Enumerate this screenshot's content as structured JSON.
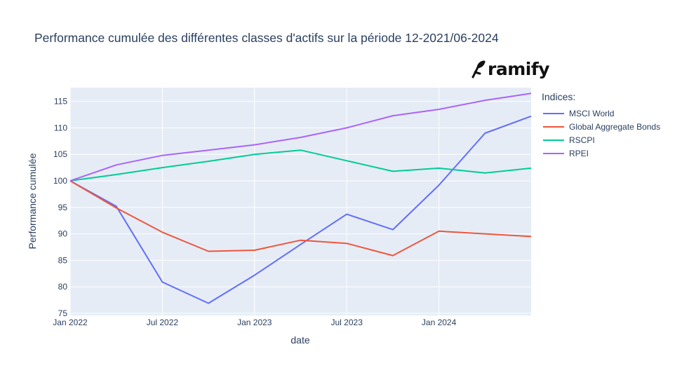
{
  "chart_data": {
    "type": "line",
    "title": "Performance cumulée des différentes classes d'actifs sur la période 12-2021/06-2024",
    "xlabel": "date",
    "ylabel": "Performance cumulée",
    "x": [
      "2022-01",
      "2022-04",
      "2022-07",
      "2022-10",
      "2023-01",
      "2023-04",
      "2023-07",
      "2023-10",
      "2024-01",
      "2024-04",
      "2024-07"
    ],
    "x_ticks": [
      {
        "label": "Jan 2022",
        "index": 0
      },
      {
        "label": "Jul 2022",
        "index": 2
      },
      {
        "label": "Jan 2023",
        "index": 4
      },
      {
        "label": "Jul 2023",
        "index": 6
      },
      {
        "label": "Jan 2024",
        "index": 8
      }
    ],
    "y_ticks": [
      75,
      80,
      85,
      90,
      95,
      100,
      105,
      110,
      115
    ],
    "ylim": [
      74.6,
      117.6
    ],
    "legend_title": "Indices:",
    "series": [
      {
        "name": "MSCI World",
        "color": "#636efa",
        "values": [
          100,
          95.2,
          80.9,
          76.9,
          82.2,
          88.0,
          93.7,
          90.8,
          99.2,
          109.0,
          112.2
        ]
      },
      {
        "name": "Global Aggregate Bonds",
        "color": "#ef553b",
        "values": [
          100,
          94.9,
          90.3,
          86.7,
          86.9,
          88.8,
          88.2,
          85.9,
          90.5,
          90.0,
          89.5
        ]
      },
      {
        "name": "RSCPI",
        "color": "#00cc96",
        "values": [
          100,
          101.2,
          102.5,
          103.7,
          105.0,
          105.8,
          103.8,
          101.8,
          102.4,
          101.5,
          102.4
        ]
      },
      {
        "name": "RPEI",
        "color": "#ab63fa",
        "values": [
          100,
          103.0,
          104.8,
          105.8,
          106.8,
          108.2,
          110.0,
          112.3,
          113.5,
          115.2,
          116.5
        ]
      }
    ]
  },
  "logo": {
    "text": "ramify"
  }
}
